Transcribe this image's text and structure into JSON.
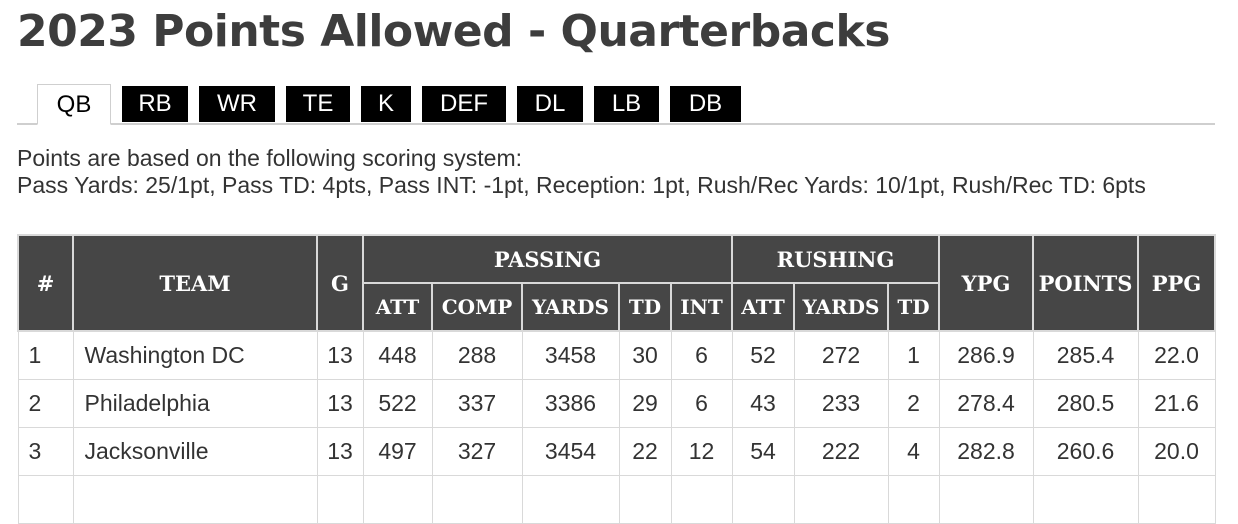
{
  "page_title": "2023 Points Allowed - Quarterbacks",
  "tabs": [
    {
      "label": "QB",
      "active": true
    },
    {
      "label": "RB",
      "active": false
    },
    {
      "label": "WR",
      "active": false
    },
    {
      "label": "TE",
      "active": false
    },
    {
      "label": "K",
      "active": false
    },
    {
      "label": "DEF",
      "active": false
    },
    {
      "label": "DL",
      "active": false
    },
    {
      "label": "LB",
      "active": false
    },
    {
      "label": "DB",
      "active": false
    }
  ],
  "scoring": {
    "intro": "Points are based on the following scoring system:",
    "rules": "Pass Yards: 25/1pt, Pass TD: 4pts, Pass INT: -1pt, Reception: 1pt, Rush/Rec Yards: 10/1pt, Rush/Rec TD: 6pts"
  },
  "table": {
    "headers": {
      "rank": "#",
      "team": "TEAM",
      "games": "G",
      "passing": "PASSING",
      "rushing": "RUSHING",
      "ypg": "YPG",
      "points": "POINTS",
      "ppg": "PPG",
      "pass_att": "ATT",
      "pass_comp": "COMP",
      "pass_yards": "YARDS",
      "pass_td": "TD",
      "pass_int": "INT",
      "rush_att": "ATT",
      "rush_yards": "YARDS",
      "rush_td": "TD"
    },
    "rows": [
      {
        "rank": "1",
        "team": "Washington DC",
        "g": "13",
        "pass_att": "448",
        "pass_comp": "288",
        "pass_yards": "3458",
        "pass_td": "30",
        "pass_int": "6",
        "rush_att": "52",
        "rush_yards": "272",
        "rush_td": "1",
        "ypg": "286.9",
        "points": "285.4",
        "ppg": "22.0"
      },
      {
        "rank": "2",
        "team": "Philadelphia",
        "g": "13",
        "pass_att": "522",
        "pass_comp": "337",
        "pass_yards": "3386",
        "pass_td": "29",
        "pass_int": "6",
        "rush_att": "43",
        "rush_yards": "233",
        "rush_td": "2",
        "ypg": "278.4",
        "points": "280.5",
        "ppg": "21.6"
      },
      {
        "rank": "3",
        "team": "Jacksonville",
        "g": "13",
        "pass_att": "497",
        "pass_comp": "327",
        "pass_yards": "3454",
        "pass_td": "22",
        "pass_int": "12",
        "rush_att": "54",
        "rush_yards": "222",
        "rush_td": "4",
        "ypg": "282.8",
        "points": "260.6",
        "ppg": "20.0"
      }
    ]
  }
}
